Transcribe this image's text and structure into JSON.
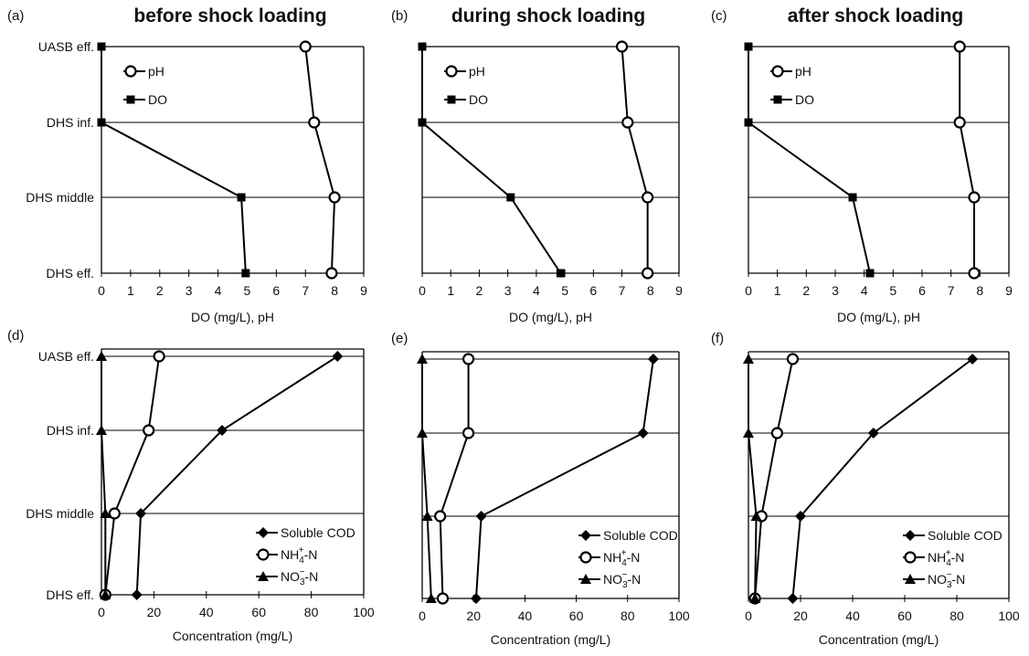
{
  "figure": {
    "panels": [
      {
        "id": "a",
        "letter": "(a)",
        "title": "before shock loading"
      },
      {
        "id": "b",
        "letter": "(b)",
        "title": "during shock loading"
      },
      {
        "id": "c",
        "letter": "(c)",
        "title": "after shock loading"
      },
      {
        "id": "d",
        "letter": "(d)",
        "title": ""
      },
      {
        "id": "e",
        "letter": "(e)",
        "title": ""
      },
      {
        "id": "f",
        "letter": "(f)",
        "title": ""
      }
    ]
  },
  "chart_data": [
    {
      "panel": "(a)",
      "type": "line",
      "title": "before shock loading",
      "xlabel": "DO (mg/L),  pH",
      "xlim": [
        0,
        9
      ],
      "xticks": [
        0,
        1,
        2,
        3,
        4,
        5,
        6,
        7,
        8,
        9
      ],
      "categories": [
        "UASB eff.",
        "DHS inf.",
        "DHS middle",
        "DHS eff."
      ],
      "series": [
        {
          "name": "pH",
          "marker": "open-circle",
          "values": [
            7.0,
            7.3,
            8.0,
            7.9
          ]
        },
        {
          "name": "DO",
          "marker": "filled-square",
          "values": [
            0,
            0,
            4.8,
            4.95
          ]
        }
      ],
      "legend": {
        "position": "top-left",
        "items": [
          "pH",
          "DO"
        ]
      }
    },
    {
      "panel": "(b)",
      "type": "line",
      "title": "during shock loading",
      "xlabel": "DO (mg/L),  pH",
      "xlim": [
        0,
        9
      ],
      "xticks": [
        0,
        1,
        2,
        3,
        4,
        5,
        6,
        7,
        8,
        9
      ],
      "categories": [
        "UASB eff.",
        "DHS inf.",
        "DHS middle",
        "DHS eff."
      ],
      "series": [
        {
          "name": "pH",
          "marker": "open-circle",
          "values": [
            7.0,
            7.2,
            7.9,
            7.9
          ]
        },
        {
          "name": "DO",
          "marker": "filled-square",
          "values": [
            0,
            0,
            3.1,
            4.85
          ]
        }
      ],
      "legend": {
        "position": "top-left",
        "items": [
          "pH",
          "DO"
        ]
      }
    },
    {
      "panel": "(c)",
      "type": "line",
      "title": "after shock loading",
      "xlabel": "DO (mg/L),  pH",
      "xlim": [
        0,
        9
      ],
      "xticks": [
        0,
        1,
        2,
        3,
        4,
        5,
        6,
        7,
        8,
        9
      ],
      "categories": [
        "UASB eff.",
        "DHS inf.",
        "DHS middle",
        "DHS eff."
      ],
      "series": [
        {
          "name": "pH",
          "marker": "open-circle",
          "values": [
            7.3,
            7.3,
            7.8,
            7.8
          ]
        },
        {
          "name": "DO",
          "marker": "filled-square",
          "values": [
            0,
            0,
            3.6,
            4.2
          ]
        }
      ],
      "legend": {
        "position": "top-left",
        "items": [
          "pH",
          "DO"
        ]
      }
    },
    {
      "panel": "(d)",
      "type": "line",
      "title": "",
      "xlabel": "Concentration (mg/L)",
      "xlim": [
        0,
        100
      ],
      "xticks": [
        0,
        20,
        40,
        60,
        80,
        100
      ],
      "categories": [
        "UASB eff.",
        "DHS inf.",
        "DHS middle",
        "DHS eff."
      ],
      "series": [
        {
          "name": "Soluble COD",
          "marker": "filled-diamond",
          "values": [
            90,
            46,
            15,
            13.5
          ]
        },
        {
          "name": "NH4+-N",
          "marker": "open-circle",
          "values": [
            22,
            18,
            5,
            1.5
          ]
        },
        {
          "name": "NO3--N",
          "marker": "filled-triangle",
          "values": [
            0,
            0,
            1.5,
            1.5
          ]
        }
      ],
      "legend": {
        "position": "bottom-right",
        "items": [
          "Soluble COD",
          "NH4+-N",
          "NO3--N"
        ]
      }
    },
    {
      "panel": "(e)",
      "type": "line",
      "title": "",
      "xlabel": "Concentration (mg/L)",
      "xlim": [
        0,
        100
      ],
      "xticks": [
        0,
        20,
        40,
        60,
        80,
        100
      ],
      "categories": [
        "UASB eff.",
        "DHS inf.",
        "DHS middle",
        "DHS eff."
      ],
      "series": [
        {
          "name": "Soluble COD",
          "marker": "filled-diamond",
          "values": [
            90,
            86,
            23,
            21
          ]
        },
        {
          "name": "NH4+-N",
          "marker": "open-circle",
          "values": [
            18,
            18,
            7,
            8
          ]
        },
        {
          "name": "NO3--N",
          "marker": "filled-triangle",
          "values": [
            0,
            0,
            2,
            3.5
          ]
        }
      ],
      "legend": {
        "position": "bottom-right",
        "items": [
          "Soluble COD",
          "NH4+-N",
          "NO3--N"
        ]
      }
    },
    {
      "panel": "(f)",
      "type": "line",
      "title": "",
      "xlabel": "Concentration (mg/L)",
      "xlim": [
        0,
        100
      ],
      "xticks": [
        0,
        20,
        40,
        60,
        80,
        100
      ],
      "categories": [
        "UASB eff.",
        "DHS inf.",
        "DHS middle",
        "DHS eff."
      ],
      "series": [
        {
          "name": "Soluble COD",
          "marker": "filled-diamond",
          "values": [
            86,
            48,
            20,
            17
          ]
        },
        {
          "name": "NH4+-N",
          "marker": "open-circle",
          "values": [
            17,
            11,
            5,
            2.5
          ]
        },
        {
          "name": "NO3--N",
          "marker": "filled-triangle",
          "values": [
            0,
            0,
            3,
            2.5
          ]
        }
      ],
      "legend": {
        "position": "bottom-right",
        "items": [
          "Soluble COD",
          "NH4+-N",
          "NO3--N"
        ]
      }
    }
  ]
}
